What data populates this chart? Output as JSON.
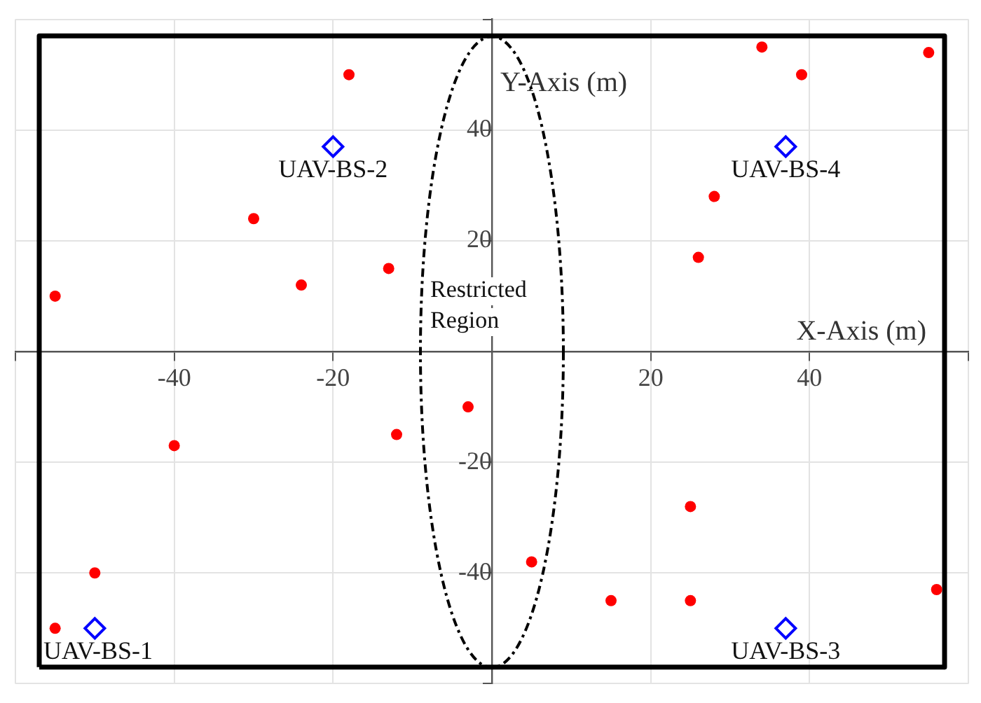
{
  "chart_data": {
    "type": "scatter",
    "xlabel": "X-Axis (m)",
    "ylabel": "Y-Axis (m)",
    "xlim": [
      -60,
      60
    ],
    "ylim": [
      -60,
      60
    ],
    "xticks": [
      {
        "value": -60,
        "label": null
      },
      -40,
      -20,
      {
        "value": 0,
        "label": null
      },
      20,
      40,
      {
        "value": 60,
        "label": null
      }
    ],
    "yticks": [
      {
        "value": -60,
        "label": null
      },
      -40,
      -20,
      {
        "value": 0,
        "label": null
      },
      20,
      40,
      {
        "value": 60,
        "label": null
      }
    ],
    "grid": true,
    "legend": false,
    "series": [
      {
        "type": "line",
        "color": "#000000",
        "marker": "none",
        "line_style": "solid",
        "x": [
          -57,
          -57,
          57,
          57
        ],
        "values": [
          -57,
          57,
          57,
          -57
        ]
      },
      {
        "type": "line",
        "color": "#000000",
        "marker": "none",
        "line_style": "solid",
        "x": [
          -57,
          57
        ],
        "values": [
          -57,
          -57
        ]
      },
      {
        "type": "scatter",
        "color": "#ff0000",
        "marker": "circle",
        "x": [
          -18,
          -30,
          -55,
          -24,
          -13,
          34,
          39,
          55,
          28,
          26,
          -40,
          -12,
          -3,
          -50,
          -55,
          5,
          25,
          15,
          25,
          56
        ],
        "values": [
          50,
          24,
          10,
          12,
          15,
          55,
          50,
          54,
          28,
          17,
          -17,
          -15,
          -10,
          -40,
          -50,
          -38,
          -28,
          -45,
          -45,
          -43
        ]
      },
      {
        "type": "scatter",
        "color": "#0000ff",
        "marker": "diamond",
        "x": [
          -50,
          -20,
          37,
          37
        ],
        "values": [
          -50,
          37,
          -50,
          37
        ]
      }
    ],
    "annotations": [
      {
        "text": "UAV-BS-1",
        "x": -50,
        "y": -50
      },
      {
        "text": "UAV-BS-2",
        "x": -20,
        "y": 37
      },
      {
        "text": "UAV-BS-3",
        "x": 37,
        "y": -50
      },
      {
        "text": "UAV-BS-4",
        "x": 37,
        "y": 37
      },
      "Restricted Region"
    ]
  }
}
